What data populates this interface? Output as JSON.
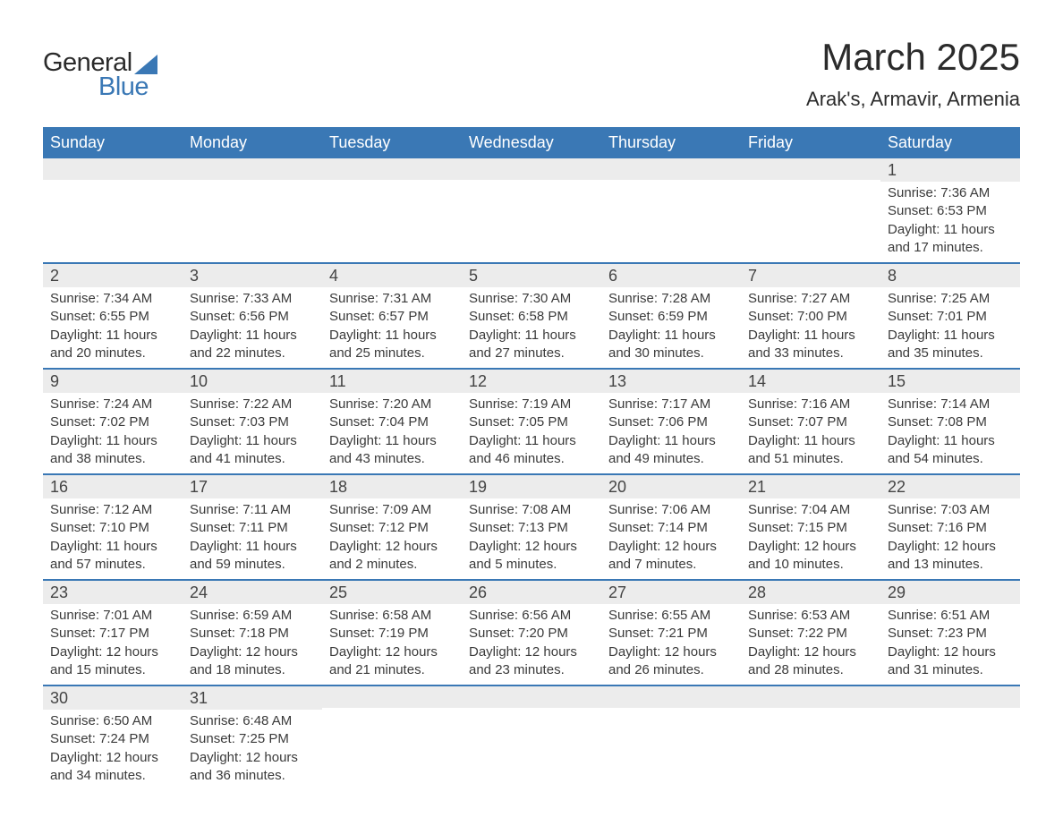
{
  "logo": {
    "text1": "General",
    "text2": "Blue",
    "tri_color": "#3a78b5"
  },
  "title": "March 2025",
  "location": "Arak's, Armavir, Armenia",
  "colors": {
    "header_bg": "#3a78b5",
    "header_fg": "#ffffff",
    "daynum_bg": "#ececec",
    "row_divider": "#3a78b5",
    "text": "#3a3a3a"
  },
  "weekdays": [
    "Sunday",
    "Monday",
    "Tuesday",
    "Wednesday",
    "Thursday",
    "Friday",
    "Saturday"
  ],
  "weeks": [
    [
      null,
      null,
      null,
      null,
      null,
      null,
      {
        "n": "1",
        "sunrise": "Sunrise: 7:36 AM",
        "sunset": "Sunset: 6:53 PM",
        "day1": "Daylight: 11 hours",
        "day2": "and 17 minutes."
      }
    ],
    [
      {
        "n": "2",
        "sunrise": "Sunrise: 7:34 AM",
        "sunset": "Sunset: 6:55 PM",
        "day1": "Daylight: 11 hours",
        "day2": "and 20 minutes."
      },
      {
        "n": "3",
        "sunrise": "Sunrise: 7:33 AM",
        "sunset": "Sunset: 6:56 PM",
        "day1": "Daylight: 11 hours",
        "day2": "and 22 minutes."
      },
      {
        "n": "4",
        "sunrise": "Sunrise: 7:31 AM",
        "sunset": "Sunset: 6:57 PM",
        "day1": "Daylight: 11 hours",
        "day2": "and 25 minutes."
      },
      {
        "n": "5",
        "sunrise": "Sunrise: 7:30 AM",
        "sunset": "Sunset: 6:58 PM",
        "day1": "Daylight: 11 hours",
        "day2": "and 27 minutes."
      },
      {
        "n": "6",
        "sunrise": "Sunrise: 7:28 AM",
        "sunset": "Sunset: 6:59 PM",
        "day1": "Daylight: 11 hours",
        "day2": "and 30 minutes."
      },
      {
        "n": "7",
        "sunrise": "Sunrise: 7:27 AM",
        "sunset": "Sunset: 7:00 PM",
        "day1": "Daylight: 11 hours",
        "day2": "and 33 minutes."
      },
      {
        "n": "8",
        "sunrise": "Sunrise: 7:25 AM",
        "sunset": "Sunset: 7:01 PM",
        "day1": "Daylight: 11 hours",
        "day2": "and 35 minutes."
      }
    ],
    [
      {
        "n": "9",
        "sunrise": "Sunrise: 7:24 AM",
        "sunset": "Sunset: 7:02 PM",
        "day1": "Daylight: 11 hours",
        "day2": "and 38 minutes."
      },
      {
        "n": "10",
        "sunrise": "Sunrise: 7:22 AM",
        "sunset": "Sunset: 7:03 PM",
        "day1": "Daylight: 11 hours",
        "day2": "and 41 minutes."
      },
      {
        "n": "11",
        "sunrise": "Sunrise: 7:20 AM",
        "sunset": "Sunset: 7:04 PM",
        "day1": "Daylight: 11 hours",
        "day2": "and 43 minutes."
      },
      {
        "n": "12",
        "sunrise": "Sunrise: 7:19 AM",
        "sunset": "Sunset: 7:05 PM",
        "day1": "Daylight: 11 hours",
        "day2": "and 46 minutes."
      },
      {
        "n": "13",
        "sunrise": "Sunrise: 7:17 AM",
        "sunset": "Sunset: 7:06 PM",
        "day1": "Daylight: 11 hours",
        "day2": "and 49 minutes."
      },
      {
        "n": "14",
        "sunrise": "Sunrise: 7:16 AM",
        "sunset": "Sunset: 7:07 PM",
        "day1": "Daylight: 11 hours",
        "day2": "and 51 minutes."
      },
      {
        "n": "15",
        "sunrise": "Sunrise: 7:14 AM",
        "sunset": "Sunset: 7:08 PM",
        "day1": "Daylight: 11 hours",
        "day2": "and 54 minutes."
      }
    ],
    [
      {
        "n": "16",
        "sunrise": "Sunrise: 7:12 AM",
        "sunset": "Sunset: 7:10 PM",
        "day1": "Daylight: 11 hours",
        "day2": "and 57 minutes."
      },
      {
        "n": "17",
        "sunrise": "Sunrise: 7:11 AM",
        "sunset": "Sunset: 7:11 PM",
        "day1": "Daylight: 11 hours",
        "day2": "and 59 minutes."
      },
      {
        "n": "18",
        "sunrise": "Sunrise: 7:09 AM",
        "sunset": "Sunset: 7:12 PM",
        "day1": "Daylight: 12 hours",
        "day2": "and 2 minutes."
      },
      {
        "n": "19",
        "sunrise": "Sunrise: 7:08 AM",
        "sunset": "Sunset: 7:13 PM",
        "day1": "Daylight: 12 hours",
        "day2": "and 5 minutes."
      },
      {
        "n": "20",
        "sunrise": "Sunrise: 7:06 AM",
        "sunset": "Sunset: 7:14 PM",
        "day1": "Daylight: 12 hours",
        "day2": "and 7 minutes."
      },
      {
        "n": "21",
        "sunrise": "Sunrise: 7:04 AM",
        "sunset": "Sunset: 7:15 PM",
        "day1": "Daylight: 12 hours",
        "day2": "and 10 minutes."
      },
      {
        "n": "22",
        "sunrise": "Sunrise: 7:03 AM",
        "sunset": "Sunset: 7:16 PM",
        "day1": "Daylight: 12 hours",
        "day2": "and 13 minutes."
      }
    ],
    [
      {
        "n": "23",
        "sunrise": "Sunrise: 7:01 AM",
        "sunset": "Sunset: 7:17 PM",
        "day1": "Daylight: 12 hours",
        "day2": "and 15 minutes."
      },
      {
        "n": "24",
        "sunrise": "Sunrise: 6:59 AM",
        "sunset": "Sunset: 7:18 PM",
        "day1": "Daylight: 12 hours",
        "day2": "and 18 minutes."
      },
      {
        "n": "25",
        "sunrise": "Sunrise: 6:58 AM",
        "sunset": "Sunset: 7:19 PM",
        "day1": "Daylight: 12 hours",
        "day2": "and 21 minutes."
      },
      {
        "n": "26",
        "sunrise": "Sunrise: 6:56 AM",
        "sunset": "Sunset: 7:20 PM",
        "day1": "Daylight: 12 hours",
        "day2": "and 23 minutes."
      },
      {
        "n": "27",
        "sunrise": "Sunrise: 6:55 AM",
        "sunset": "Sunset: 7:21 PM",
        "day1": "Daylight: 12 hours",
        "day2": "and 26 minutes."
      },
      {
        "n": "28",
        "sunrise": "Sunrise: 6:53 AM",
        "sunset": "Sunset: 7:22 PM",
        "day1": "Daylight: 12 hours",
        "day2": "and 28 minutes."
      },
      {
        "n": "29",
        "sunrise": "Sunrise: 6:51 AM",
        "sunset": "Sunset: 7:23 PM",
        "day1": "Daylight: 12 hours",
        "day2": "and 31 minutes."
      }
    ],
    [
      {
        "n": "30",
        "sunrise": "Sunrise: 6:50 AM",
        "sunset": "Sunset: 7:24 PM",
        "day1": "Daylight: 12 hours",
        "day2": "and 34 minutes."
      },
      {
        "n": "31",
        "sunrise": "Sunrise: 6:48 AM",
        "sunset": "Sunset: 7:25 PM",
        "day1": "Daylight: 12 hours",
        "day2": "and 36 minutes."
      },
      null,
      null,
      null,
      null,
      null
    ]
  ]
}
